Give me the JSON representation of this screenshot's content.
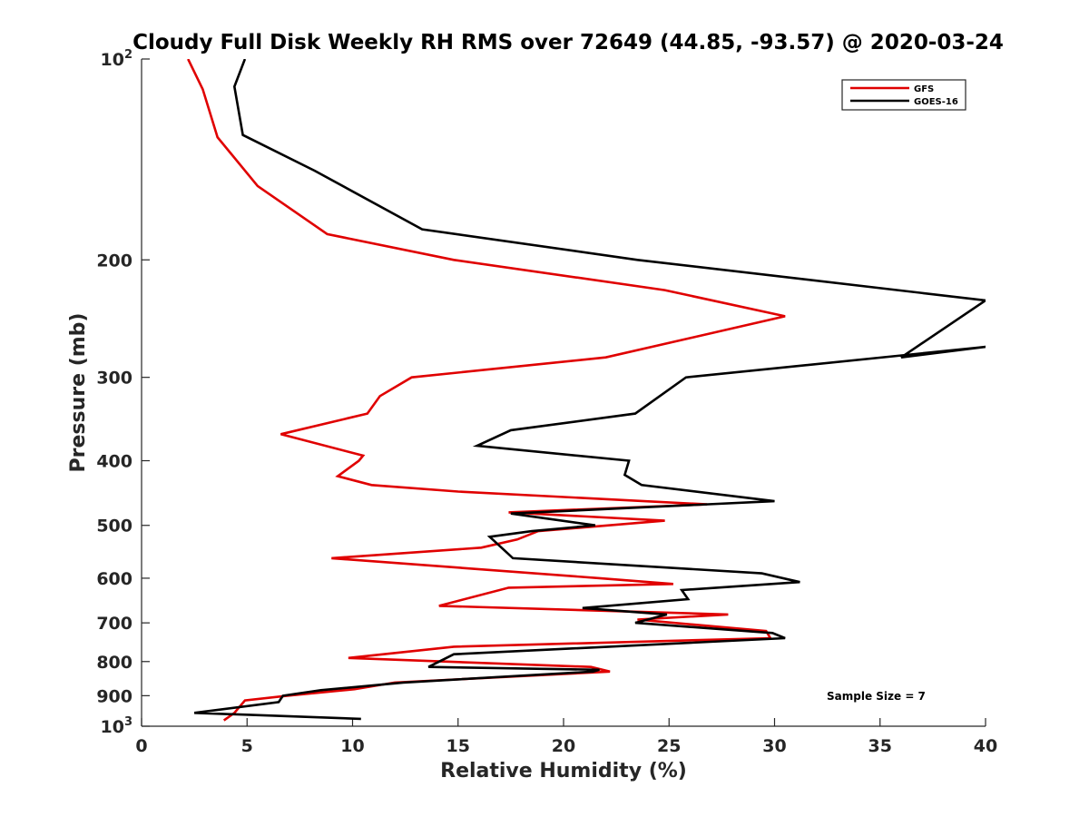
{
  "chart_data": {
    "type": "line",
    "title": "Cloudy Full Disk Weekly RH RMS over 72649 (44.85, -93.57) @ 2020-03-24",
    "xlabel": "Relative Humidity (%)",
    "ylabel": "Pressure (mb)",
    "xlim": [
      0,
      40
    ],
    "ylim": [
      100,
      1000
    ],
    "y_scale": "log",
    "y_reversed": true,
    "grid": false,
    "legend_position": "top-right",
    "x_ticks": [
      0,
      5,
      10,
      15,
      20,
      25,
      30,
      35,
      40
    ],
    "x_tick_labels": [
      "0",
      "5",
      "10",
      "15",
      "20",
      "25",
      "30",
      "35",
      "40"
    ],
    "y_ticks": [
      100,
      200,
      300,
      400,
      500,
      600,
      700,
      800,
      900,
      1000
    ],
    "y_tick_labels": [
      {
        "base": "10",
        "exp": "2"
      },
      {
        "base": "200",
        "exp": ""
      },
      {
        "base": "300",
        "exp": ""
      },
      {
        "base": "400",
        "exp": ""
      },
      {
        "base": "500",
        "exp": ""
      },
      {
        "base": "600",
        "exp": ""
      },
      {
        "base": "700",
        "exp": ""
      },
      {
        "base": "800",
        "exp": ""
      },
      {
        "base": "900",
        "exp": ""
      },
      {
        "base": "10",
        "exp": "3"
      }
    ],
    "annotation": "Sample Size = 7",
    "series": [
      {
        "name": "GFS",
        "color": "#e00000",
        "x": [
          2.2,
          2.9,
          3.6,
          5.5,
          8.8,
          14.8,
          24.8,
          30.5,
          22.0,
          12.8,
          11.3,
          10.7,
          6.6,
          10.5,
          10.3,
          9.3,
          10.9,
          15.0,
          26.8,
          17.4,
          24.8,
          18.8,
          17.8,
          16.1,
          9.0,
          21.7,
          25.2,
          17.4,
          14.1,
          27.8,
          23.5,
          29.6,
          29.8,
          14.8,
          9.8,
          21.3,
          22.2,
          12.0,
          10.1,
          6.9,
          4.9,
          4.4,
          3.9
        ],
        "y": [
          100,
          111,
          131,
          155,
          183,
          200,
          222,
          243,
          280,
          300,
          320,
          340,
          365,
          393,
          400,
          422,
          435,
          445,
          465,
          478,
          492,
          510,
          525,
          540,
          560,
          600,
          612,
          620,
          660,
          680,
          692,
          720,
          738,
          760,
          790,
          815,
          828,
          860,
          880,
          900,
          915,
          955,
          980
        ]
      },
      {
        "name": "GOES-16",
        "color": "#000000",
        "x": [
          4.9,
          4.4,
          4.8,
          8.2,
          13.3,
          23.5,
          40.0,
          36.0,
          40.0,
          25.8,
          23.4,
          17.5,
          15.9,
          23.1,
          22.9,
          23.7,
          30.0,
          17.5,
          21.5,
          18.5,
          16.5,
          17.2,
          17.6,
          29.4,
          31.2,
          25.6,
          25.9,
          20.9,
          24.9,
          23.4,
          29.9,
          30.5,
          14.8,
          13.6,
          21.7,
          21.4,
          12.4,
          8.5,
          6.7,
          6.5,
          2.5,
          10.4
        ],
        "y": [
          100,
          110,
          130,
          147,
          180,
          200,
          230,
          280,
          270,
          300,
          340,
          360,
          380,
          400,
          420,
          435,
          460,
          480,
          500,
          510,
          520,
          545,
          560,
          590,
          608,
          625,
          645,
          665,
          680,
          700,
          725,
          738,
          780,
          815,
          823,
          828,
          860,
          883,
          900,
          920,
          955,
          975
        ]
      }
    ]
  }
}
